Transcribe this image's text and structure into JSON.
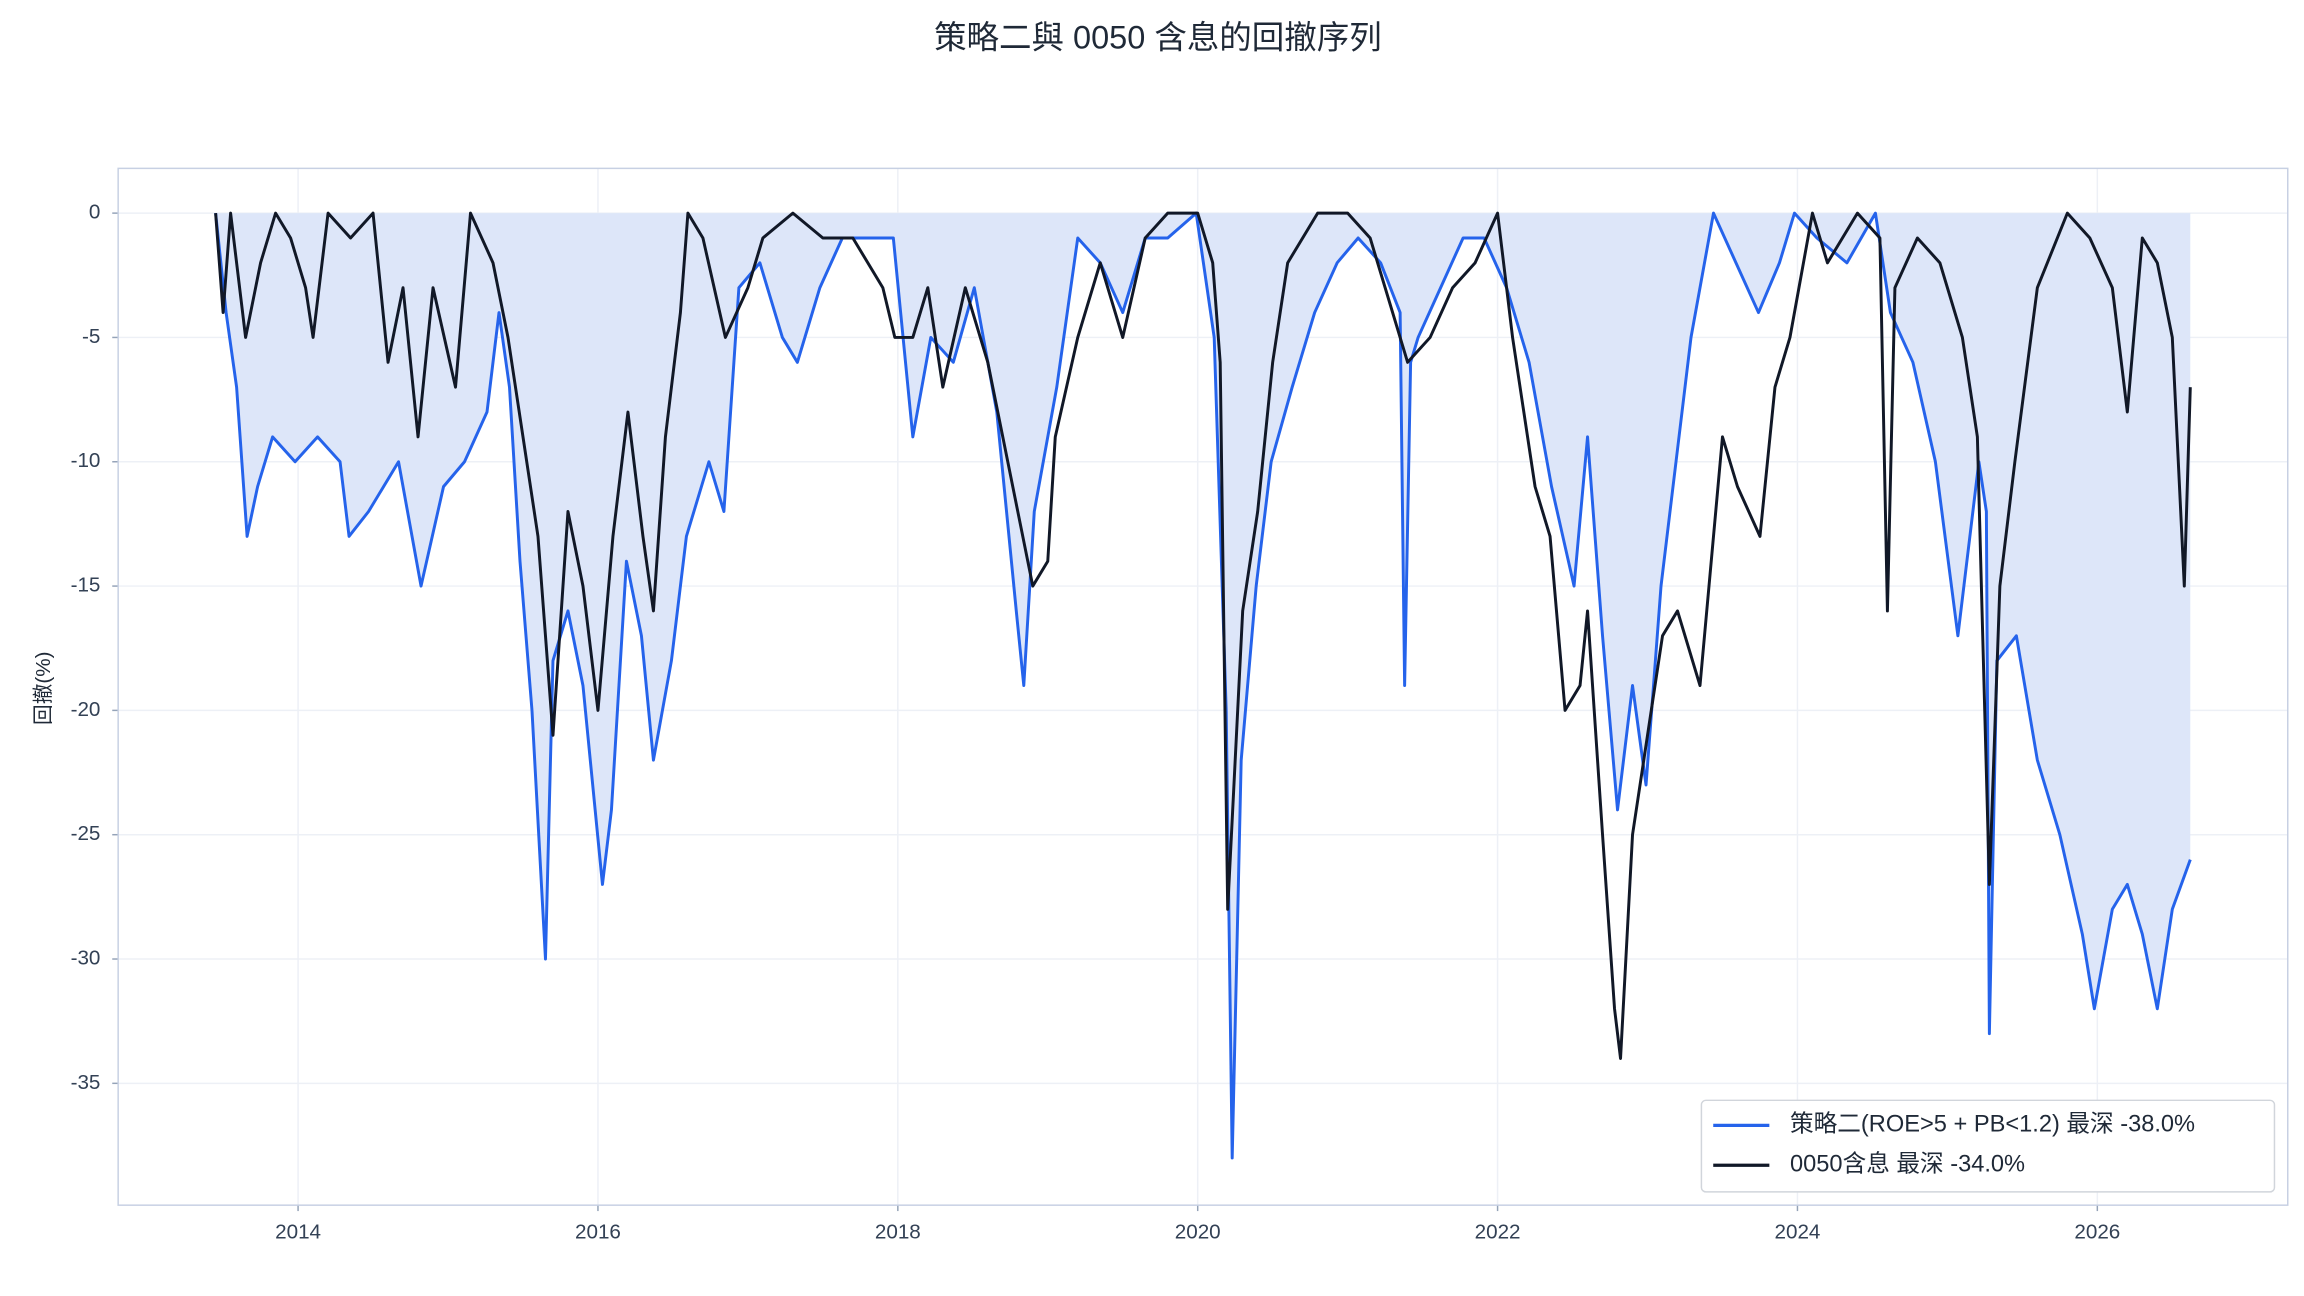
{
  "chart_data": {
    "type": "line",
    "title": "策略二與 0050 含息的回撤序列",
    "y_label": "回撤(%)",
    "xlim": [
      2012.8,
      2027.27
    ],
    "xticks": [
      2014,
      2016,
      2018,
      2020,
      2022,
      2024,
      2026
    ],
    "ylim": [
      -39.9,
      1.8
    ],
    "yticks": [
      0,
      -5,
      -10,
      -15,
      -20,
      -25,
      -30,
      -35
    ],
    "grid": true,
    "legend": "lower right",
    "fill_color": "#dde6f9",
    "series": [
      {
        "name": "策略二(ROE>5 + PB<1.2) 最深 -38.0%",
        "color": "#2563eb",
        "fill": true,
        "x": [
          2013.45,
          2013.52,
          2013.59,
          2013.66,
          2013.73,
          2013.83,
          2013.98,
          2014.13,
          2014.28,
          2014.34,
          2014.47,
          2014.67,
          2014.82,
          2014.97,
          2015.11,
          2015.26,
          2015.34,
          2015.41,
          2015.48,
          2015.56,
          2015.65,
          2015.7,
          2015.8,
          2015.9,
          2016.03,
          2016.09,
          2016.19,
          2016.29,
          2016.37,
          2016.49,
          2016.59,
          2016.74,
          2016.84,
          2016.94,
          2017.08,
          2017.23,
          2017.33,
          2017.48,
          2017.63,
          2017.82,
          2017.97,
          2018.1,
          2018.22,
          2018.37,
          2018.51,
          2018.66,
          2018.79,
          2018.84,
          2018.91,
          2019.06,
          2019.2,
          2019.35,
          2019.5,
          2019.65,
          2019.8,
          2019.99,
          2020.11,
          2020.19,
          2020.23,
          2020.29,
          2020.39,
          2020.49,
          2020.63,
          2020.78,
          2020.93,
          2021.07,
          2021.22,
          2021.35,
          2021.38,
          2021.42,
          2021.47,
          2021.62,
          2021.77,
          2021.91,
          2022.06,
          2022.21,
          2022.36,
          2022.51,
          2022.6,
          2022.7,
          2022.8,
          2022.9,
          2022.99,
          2023.09,
          2023.19,
          2023.29,
          2023.44,
          2023.59,
          2023.74,
          2023.88,
          2023.98,
          2024.13,
          2024.33,
          2024.52,
          2024.62,
          2024.77,
          2024.92,
          2025.07,
          2025.21,
          2025.26,
          2025.28,
          2025.33,
          2025.46,
          2025.6,
          2025.75,
          2025.9,
          2025.98,
          2026.1,
          2026.2,
          2026.3,
          2026.4,
          2026.5,
          2026.62
        ],
        "values": [
          0,
          -4,
          -7,
          -13,
          -11,
          -9,
          -10,
          -9,
          -10,
          -13,
          -12,
          -10,
          -15,
          -11,
          -10,
          -8,
          -4,
          -7,
          -14,
          -20,
          -30,
          -18,
          -16,
          -19,
          -27,
          -24,
          -14,
          -17,
          -22,
          -18,
          -13,
          -10,
          -12,
          -3,
          -2,
          -5,
          -6,
          -3,
          -1,
          -1,
          -1,
          -9,
          -5,
          -6,
          -3,
          -8,
          -16,
          -19,
          -12,
          -7,
          -1,
          -2,
          -4,
          -1,
          -1,
          0,
          -5,
          -20,
          -38,
          -22,
          -15,
          -10,
          -7,
          -4,
          -2,
          -1,
          -2,
          -4,
          -19,
          -6,
          -5,
          -3,
          -1,
          -1,
          -3,
          -6,
          -11,
          -15,
          -9,
          -17,
          -24,
          -19,
          -23,
          -15,
          -10,
          -5,
          0,
          -2,
          -4,
          -2,
          0,
          -1,
          -2,
          0,
          -4,
          -6,
          -10,
          -17,
          -10,
          -12,
          -33,
          -18,
          -17,
          -22,
          -25,
          -29,
          -32,
          -28,
          -27,
          -29,
          -32,
          -28,
          -26
        ]
      },
      {
        "name": "0050含息 最深 -34.0%",
        "color": "#111827",
        "x": [
          2013.45,
          2013.5,
          2013.55,
          2013.65,
          2013.75,
          2013.85,
          2013.95,
          2014.05,
          2014.1,
          2014.2,
          2014.35,
          2014.5,
          2014.6,
          2014.7,
          2014.8,
          2014.9,
          2015.05,
          2015.15,
          2015.3,
          2015.4,
          2015.5,
          2015.6,
          2015.7,
          2015.8,
          2015.9,
          2016.0,
          2016.1,
          2016.2,
          2016.3,
          2016.37,
          2016.45,
          2016.55,
          2016.6,
          2016.7,
          2016.85,
          2017.0,
          2017.1,
          2017.3,
          2017.5,
          2017.7,
          2017.9,
          2017.98,
          2018.1,
          2018.2,
          2018.3,
          2018.45,
          2018.6,
          2018.8,
          2018.9,
          2019.0,
          2019.05,
          2019.2,
          2019.35,
          2019.5,
          2019.65,
          2019.8,
          2020.0,
          2020.1,
          2020.15,
          2020.2,
          2020.3,
          2020.4,
          2020.5,
          2020.6,
          2020.8,
          2021.0,
          2021.15,
          2021.25,
          2021.4,
          2021.55,
          2021.7,
          2021.85,
          2022.0,
          2022.1,
          2022.25,
          2022.35,
          2022.45,
          2022.55,
          2022.6,
          2022.7,
          2022.78,
          2022.82,
          2022.9,
          2023.0,
          2023.1,
          2023.2,
          2023.35,
          2023.5,
          2023.6,
          2023.75,
          2023.85,
          2023.95,
          2024.1,
          2024.2,
          2024.3,
          2024.4,
          2024.55,
          2024.6,
          2024.65,
          2024.8,
          2024.95,
          2025.1,
          2025.2,
          2025.28,
          2025.35,
          2025.45,
          2025.6,
          2025.8,
          2025.95,
          2026.1,
          2026.2,
          2026.3,
          2026.4,
          2026.5,
          2026.58,
          2026.62
        ],
        "values": [
          0,
          -4,
          0,
          -5,
          -2,
          0,
          -1,
          -3,
          -5,
          0,
          -1,
          0,
          -6,
          -3,
          -9,
          -3,
          -7,
          0,
          -2,
          -5,
          -9,
          -13,
          -21,
          -12,
          -15,
          -20,
          -13,
          -8,
          -13,
          -16,
          -9,
          -4,
          0,
          -1,
          -5,
          -3,
          -1,
          0,
          -1,
          -1,
          -3,
          -5,
          -5,
          -3,
          -7,
          -3,
          -6,
          -12,
          -15,
          -14,
          -9,
          -5,
          -2,
          -5,
          -1,
          0,
          0,
          -2,
          -6,
          -28,
          -16,
          -12,
          -6,
          -2,
          0,
          0,
          -1,
          -3,
          -6,
          -5,
          -3,
          -2,
          0,
          -5,
          -11,
          -13,
          -20,
          -19,
          -16,
          -25,
          -32,
          -34,
          -25,
          -21,
          -17,
          -16,
          -19,
          -9,
          -11,
          -13,
          -7,
          -5,
          0,
          -2,
          -1,
          0,
          -1,
          -16,
          -3,
          -1,
          -2,
          -5,
          -9,
          -27,
          -15,
          -10,
          -3,
          0,
          -1,
          -3,
          -8,
          -1,
          -2,
          -5,
          -15,
          -7
        ]
      }
    ]
  }
}
